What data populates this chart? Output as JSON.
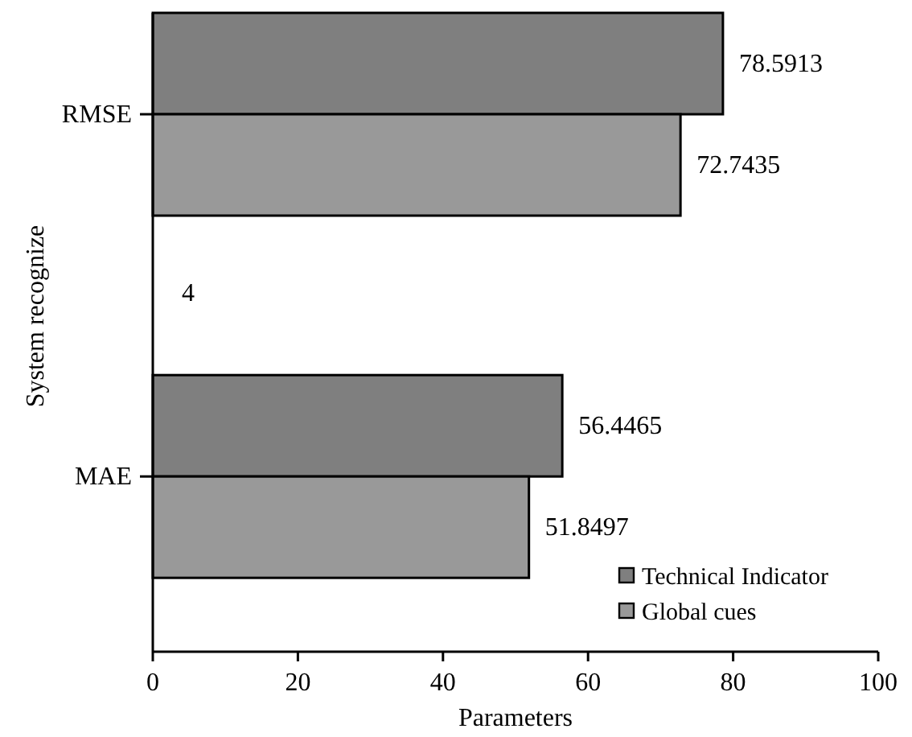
{
  "chart_data": {
    "type": "bar",
    "orientation": "horizontal",
    "xlabel": "Parameters",
    "ylabel": "System recognize",
    "categories": [
      "RMSE",
      "MAE"
    ],
    "series": [
      {
        "name": "Technical Indicator",
        "color": "#7f7f7f",
        "values": [
          78.5913,
          56.4465
        ]
      },
      {
        "name": "Global cues",
        "color": "#999999",
        "values": [
          72.7435,
          51.8497
        ]
      }
    ],
    "xlim": [
      0,
      100
    ],
    "xticks": [
      0,
      20,
      40,
      60,
      80,
      100
    ],
    "data_labels": true,
    "legend": "bottom right",
    "grid": false,
    "annotations": [
      "4"
    ]
  }
}
